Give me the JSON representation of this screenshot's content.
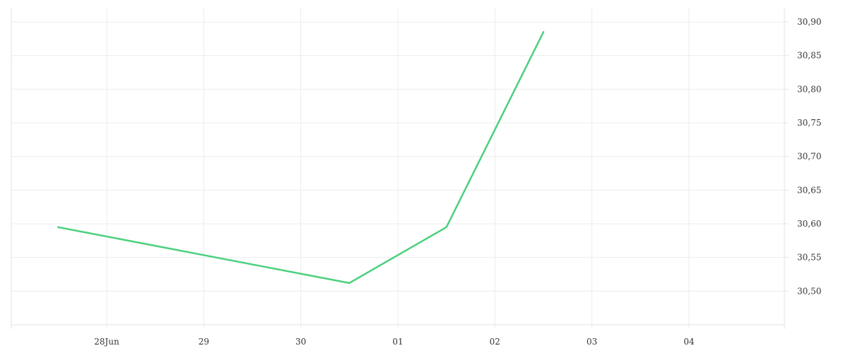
{
  "chart_data": {
    "type": "line",
    "x_tick_labels": [
      "28Jun",
      "29",
      "30",
      "01",
      "02",
      "03",
      "04"
    ],
    "y_tick_labels": [
      "30,50",
      "30,55",
      "30,60",
      "30,65",
      "30,70",
      "30,75",
      "30,80",
      "30,85",
      "30,90"
    ],
    "y_ticks": [
      30.5,
      30.55,
      30.6,
      30.65,
      30.7,
      30.75,
      30.8,
      30.85,
      30.9
    ],
    "ylim": [
      30.45,
      30.92
    ],
    "xlim": [
      -1.0,
      7.0
    ],
    "grid": true,
    "series": [
      {
        "color": "#4cd07d",
        "x": [
          -0.5,
          2.5,
          3.5,
          4.5
        ],
        "y": [
          30.595,
          30.512,
          30.595,
          30.885
        ]
      }
    ]
  }
}
